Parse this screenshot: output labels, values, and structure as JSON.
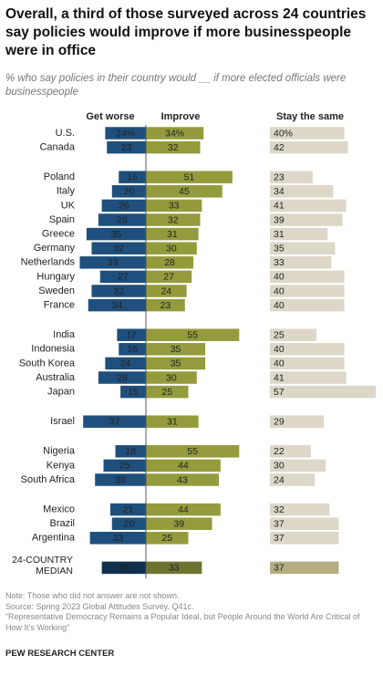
{
  "chart_data": {
    "type": "diverging_bar",
    "title": "Overall, a third of those surveyed across 24 countries say policies would improve if more businesspeople were in office",
    "subtitle": "% who say policies in their country would __ if more elected officials were businesspeople",
    "categories": [
      "U.S.",
      "Canada",
      "Poland",
      "Italy",
      "UK",
      "Spain",
      "Greece",
      "Germany",
      "Netherlands",
      "Hungary",
      "Sweden",
      "France",
      "India",
      "Indonesia",
      "South Korea",
      "Australia",
      "Japan",
      "Israel",
      "Nigeria",
      "Kenya",
      "South Africa",
      "Mexico",
      "Brazil",
      "Argentina",
      "24-COUNTRY MEDIAN"
    ],
    "series": [
      {
        "name": "Get worse",
        "color": "#1f4f7c",
        "median_color": "#0f2f4f",
        "values": [
          24,
          23,
          16,
          20,
          26,
          28,
          35,
          32,
          39,
          27,
          32,
          34,
          17,
          16,
          24,
          28,
          15,
          37,
          18,
          25,
          30,
          21,
          20,
          33,
          26
        ],
        "value_labels": [
          "24%",
          "23",
          "16",
          "20",
          "26",
          "28",
          "35",
          "32",
          "39",
          "27",
          "32",
          "34",
          "17",
          "16",
          "24",
          "28",
          "15",
          "37",
          "18",
          "25",
          "30",
          "21",
          "20",
          "33",
          "26"
        ]
      },
      {
        "name": "Improve",
        "color": "#949b3c",
        "median_color": "#6e7330",
        "values": [
          34,
          32,
          51,
          45,
          33,
          32,
          31,
          30,
          28,
          27,
          24,
          23,
          55,
          35,
          35,
          30,
          25,
          31,
          55,
          44,
          43,
          44,
          39,
          25,
          33
        ],
        "value_labels": [
          "34%",
          "32",
          "51",
          "45",
          "33",
          "32",
          "31",
          "30",
          "28",
          "27",
          "24",
          "23",
          "55",
          "35",
          "35",
          "30",
          "25",
          "31",
          "55",
          "44",
          "43",
          "44",
          "39",
          "25",
          "33"
        ]
      },
      {
        "name": "Stay the same",
        "color": "#dcd7c9",
        "median_color": "#b6ae82",
        "values": [
          40,
          42,
          23,
          34,
          41,
          39,
          31,
          35,
          33,
          40,
          40,
          40,
          25,
          40,
          40,
          41,
          57,
          29,
          22,
          30,
          24,
          32,
          37,
          37,
          37
        ],
        "value_labels": [
          "40%",
          "42",
          "23",
          "34",
          "41",
          "39",
          "31",
          "35",
          "33",
          "40",
          "40",
          "40",
          "25",
          "40",
          "40",
          "41",
          "57",
          "29",
          "22",
          "30",
          "24",
          "32",
          "37",
          "37",
          "37"
        ]
      }
    ],
    "notes": [
      "Note: Those who did not answer are not shown.",
      "Source: Spring 2023 Global Attitudes Survey. Q41c.",
      "“Representative Democracy Remains a Popular Ideal, but People Around the World Are Critical of How It’s Working”"
    ],
    "source": "PEW RESEARCH CENTER"
  }
}
